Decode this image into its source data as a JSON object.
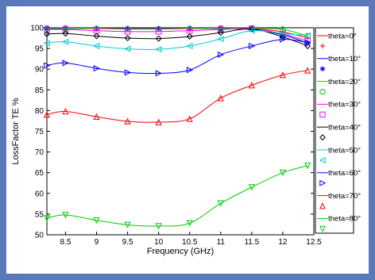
{
  "colors": {
    "frame_border": "#5a79b8",
    "figure_bg": "#ffffff"
  },
  "chart_data": {
    "type": "line",
    "title": "",
    "xlabel": "Frequency (GHz)",
    "ylabel": "LossFactor TE %",
    "xlim": [
      8.2,
      12.5
    ],
    "ylim": [
      50,
      100
    ],
    "x_ticks": [
      8.5,
      9,
      9.5,
      10,
      10.5,
      11,
      11.5,
      12,
      12.5
    ],
    "x_tick_labels": [
      "8.5",
      "9",
      "9.5",
      "10",
      "10.5",
      "11",
      "11.5",
      "12",
      "12.5"
    ],
    "y_ticks": [
      50,
      55,
      60,
      65,
      70,
      75,
      80,
      85,
      90,
      95,
      100
    ],
    "y_tick_labels": [
      "50",
      "55",
      "60",
      "65",
      "70",
      "75",
      "80",
      "85",
      "90",
      "95",
      "100"
    ],
    "grid": false,
    "legend_position": "right-outside",
    "series": [
      {
        "name": "theta=0°",
        "color": "#ff0000",
        "marker": "plus",
        "x": [
          8.2,
          8.5,
          9.0,
          9.5,
          10.0,
          10.5,
          11.0,
          11.5,
          12.0,
          12.4
        ],
        "y": [
          99.9,
          99.9,
          99.9,
          99.9,
          99.9,
          99.9,
          99.9,
          99.8,
          99.0,
          97.5
        ]
      },
      {
        "name": "theta=10°",
        "color": "#0000ff",
        "marker": "asterisk",
        "x": [
          8.2,
          8.5,
          9.0,
          9.5,
          10.0,
          10.5,
          11.0,
          11.5,
          12.0,
          12.4
        ],
        "y": [
          99.8,
          99.8,
          99.8,
          99.8,
          99.8,
          99.8,
          99.8,
          99.6,
          98.3,
          96.3
        ]
      },
      {
        "name": "theta=20°",
        "color": "#00cc00",
        "marker": "circle",
        "x": [
          8.2,
          8.5,
          9.0,
          9.5,
          10.0,
          10.5,
          11.0,
          11.5,
          12.0,
          12.4
        ],
        "y": [
          99.9,
          99.9,
          99.8,
          99.7,
          99.7,
          99.8,
          99.9,
          99.9,
          99.6,
          98.0
        ]
      },
      {
        "name": "theta=30°",
        "color": "#ff00ff",
        "marker": "square",
        "x": [
          8.2,
          8.5,
          9.0,
          9.5,
          10.0,
          10.5,
          11.0,
          11.5,
          12.0,
          12.4
        ],
        "y": [
          99.6,
          99.6,
          99.3,
          99.1,
          99.1,
          99.3,
          99.6,
          99.8,
          98.5,
          96.8
        ]
      },
      {
        "name": "theta=40°",
        "color": "#000000",
        "marker": "diamond",
        "x": [
          8.2,
          8.5,
          9.0,
          9.5,
          10.0,
          10.5,
          11.0,
          11.5,
          12.0,
          12.4
        ],
        "y": [
          98.5,
          98.6,
          98.0,
          97.5,
          97.4,
          97.9,
          98.8,
          99.7,
          97.8,
          95.6
        ]
      },
      {
        "name": "theta=50°",
        "color": "#00cccc",
        "marker": "triangle-left",
        "x": [
          8.2,
          8.5,
          9.0,
          9.5,
          10.0,
          10.5,
          11.0,
          11.5,
          12.0,
          12.4
        ],
        "y": [
          96.3,
          96.6,
          95.6,
          94.9,
          94.8,
          95.6,
          97.3,
          99.3,
          98.6,
          98.1
        ]
      },
      {
        "name": "theta=60°",
        "color": "#0000ff",
        "marker": "triangle-right",
        "x": [
          8.2,
          8.5,
          9.0,
          9.5,
          10.0,
          10.5,
          11.0,
          11.5,
          12.0,
          12.4
        ],
        "y": [
          90.9,
          91.5,
          90.2,
          89.2,
          89.0,
          89.8,
          93.5,
          95.6,
          97.2,
          96.4
        ]
      },
      {
        "name": "theta=70°",
        "color": "#ff0000",
        "marker": "triangle-up",
        "x": [
          8.2,
          8.5,
          9.0,
          9.5,
          10.0,
          10.5,
          11.0,
          11.5,
          12.0,
          12.4
        ],
        "y": [
          79.0,
          79.8,
          78.5,
          77.4,
          77.2,
          78.0,
          83.0,
          86.1,
          88.6,
          89.7
        ]
      },
      {
        "name": "theta=80°",
        "color": "#00cc00",
        "marker": "triangle-down",
        "x": [
          8.2,
          8.5,
          9.0,
          9.5,
          10.0,
          10.5,
          11.0,
          11.5,
          12.0,
          12.4
        ],
        "y": [
          54.0,
          54.8,
          53.5,
          52.4,
          52.1,
          52.8,
          57.6,
          61.5,
          65.0,
          66.7
        ]
      }
    ]
  }
}
